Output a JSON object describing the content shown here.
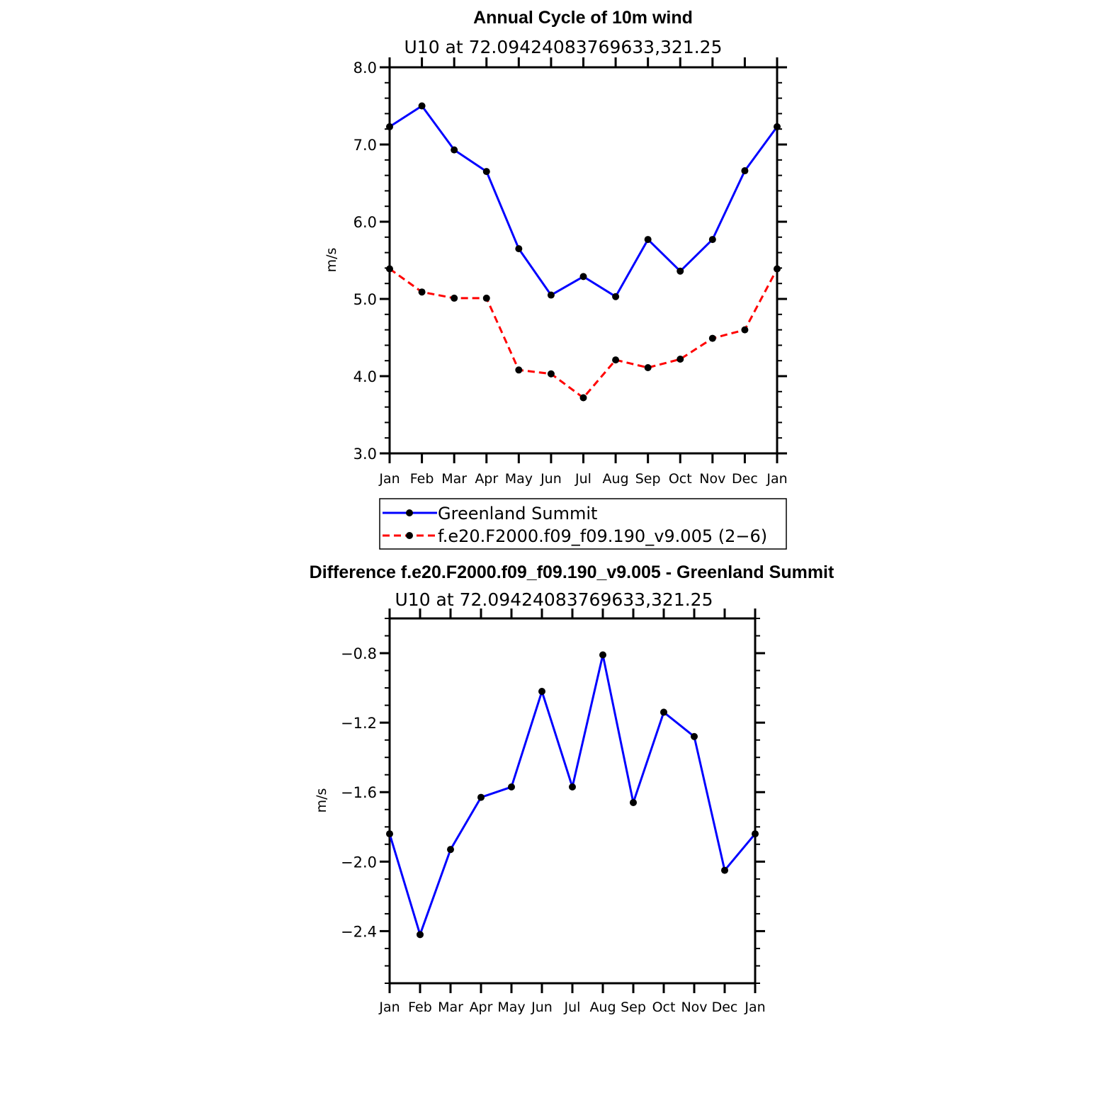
{
  "chart_data": [
    {
      "type": "line",
      "title": "Annual Cycle of 10m wind",
      "subtitle": "U10  at  72.09424083769633,321.25",
      "ylabel": "m/s",
      "xlabel": "",
      "ylim": [
        3.0,
        8.0
      ],
      "y_major_ticks": [
        3.0,
        4.0,
        5.0,
        6.0,
        7.0,
        8.0
      ],
      "y_tick_labels": [
        "3.0",
        "4.0",
        "5.0",
        "6.0",
        "7.0",
        "8.0"
      ],
      "categories": [
        "Jan",
        "Feb",
        "Mar",
        "Apr",
        "May",
        "Jun",
        "Jul",
        "Aug",
        "Sep",
        "Oct",
        "Nov",
        "Dec",
        "Jan"
      ],
      "series": [
        {
          "name": "Greenland Summit",
          "color": "#0000ff",
          "dashed": false,
          "values": [
            7.23,
            7.5,
            6.93,
            6.65,
            5.65,
            5.05,
            5.29,
            5.03,
            5.77,
            5.36,
            5.77,
            6.66,
            7.23
          ]
        },
        {
          "name": "f.e20.F2000.f09_f09.190_v9.005 (2−6)",
          "color": "#ff0000",
          "dashed": true,
          "values": [
            5.39,
            5.09,
            5.01,
            5.01,
            4.08,
            4.03,
            3.72,
            4.21,
            4.11,
            4.22,
            4.49,
            4.6,
            5.39
          ]
        }
      ],
      "legend": "below"
    },
    {
      "type": "line",
      "title": "Difference f.e20.F2000.f09_f09.190_v9.005 - Greenland Summit",
      "subtitle": "U10  at  72.09424083769633,321.25",
      "ylabel": "m/s",
      "xlabel": "",
      "ylim": [
        -2.7,
        -0.6
      ],
      "y_major_ticks": [
        -2.4,
        -2.0,
        -1.6,
        -1.2,
        -0.8
      ],
      "y_tick_labels": [
        "−2.4",
        "−2.0",
        "−1.6",
        "−1.2",
        "−0.8"
      ],
      "categories": [
        "Jan",
        "Feb",
        "Mar",
        "Apr",
        "May",
        "Jun",
        "Jul",
        "Aug",
        "Sep",
        "Oct",
        "Nov",
        "Dec",
        "Jan"
      ],
      "series": [
        {
          "name": "Difference",
          "color": "#0000ff",
          "dashed": false,
          "values": [
            -1.84,
            -2.42,
            -1.93,
            -1.63,
            -1.57,
            -1.02,
            -1.57,
            -0.81,
            -1.66,
            -1.14,
            -1.28,
            -2.05,
            -1.84
          ]
        }
      ]
    }
  ]
}
